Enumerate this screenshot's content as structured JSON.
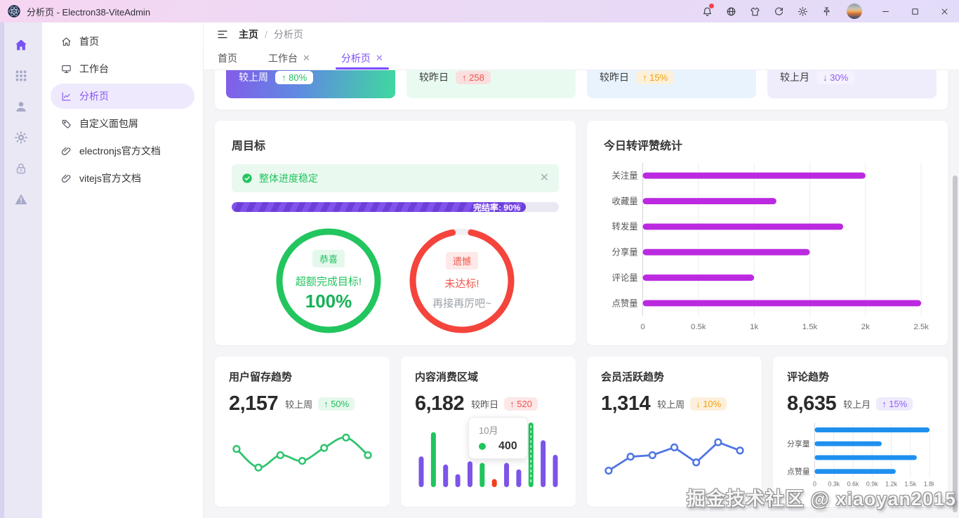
{
  "titlebar": {
    "app_title": "分析页 - Electron38-ViteAdmin",
    "action_icons": [
      "bell-icon",
      "language-icon",
      "theme-icon",
      "refresh-icon",
      "settings-icon",
      "pin-icon"
    ],
    "window_controls": [
      "minimize-icon",
      "maximize-icon",
      "close-icon"
    ],
    "notification_dot_color": "#f5434a"
  },
  "rail": {
    "items": [
      {
        "icon": "home-icon",
        "active": true
      },
      {
        "icon": "apps-grid-icon",
        "active": false
      },
      {
        "icon": "user-icon",
        "active": false
      },
      {
        "icon": "gear-icon",
        "active": false
      },
      {
        "icon": "lock-icon",
        "active": false
      },
      {
        "icon": "warning-icon",
        "active": false
      }
    ]
  },
  "sidebar": {
    "items": [
      {
        "icon": "home-outline-icon",
        "label": "首页",
        "active": false
      },
      {
        "icon": "monitor-icon",
        "label": "工作台",
        "active": false
      },
      {
        "icon": "chart-trend-icon",
        "label": "分析页",
        "active": true
      },
      {
        "icon": "tag-icon",
        "label": "自定义面包屑",
        "active": false
      },
      {
        "icon": "link-icon",
        "label": "electronjs官方文档",
        "active": false
      },
      {
        "icon": "link-icon",
        "label": "vitejs官方文档",
        "active": false
      }
    ]
  },
  "breadcrumb": {
    "items": [
      "主页",
      "分析页"
    ],
    "separator": "/"
  },
  "tabs": [
    {
      "label": "首页",
      "closable": false,
      "active": false
    },
    {
      "label": "工作台",
      "closable": true,
      "active": false
    },
    {
      "label": "分析页",
      "closable": true,
      "active": true
    }
  ],
  "overview_cards": [
    {
      "label": "较上周",
      "badge": "↑ 80%",
      "variant": "gradient"
    },
    {
      "label": "较昨日",
      "badge": "↑ 258",
      "variant": "green"
    },
    {
      "label": "较昨日",
      "badge": "↑ 15%",
      "variant": "blue"
    },
    {
      "label": "较上月",
      "badge": "↓ 30%",
      "variant": "purple"
    }
  ],
  "week_goal": {
    "title": "周目标",
    "alert_text": "整体进度稳定",
    "progress_value": 90,
    "progress_label": "完结率: 90%",
    "gauges": [
      {
        "badge": "恭喜",
        "line1": "超额完成目标!",
        "line2": "100%",
        "color": "#22c55e",
        "percent": 100
      },
      {
        "badge": "遗憾",
        "line1": "未达标!",
        "line2": "再接再厉吧~",
        "color": "#f4443c",
        "percent": 94
      }
    ]
  },
  "chart_data": [
    {
      "id": "today_stats",
      "type": "bar",
      "orientation": "horizontal",
      "title": "今日转评赞统计",
      "categories": [
        "关注量",
        "收藏量",
        "转发量",
        "分享量",
        "评论量",
        "点赞量"
      ],
      "values": [
        2000,
        1200,
        1800,
        1500,
        1000,
        2500
      ],
      "xticks": [
        "0",
        "0.5k",
        "1k",
        "1.5k",
        "2k",
        "2.5k"
      ],
      "xlim": [
        0,
        2500
      ],
      "bar_color": "#bb2ae0",
      "grid": true,
      "legend_position": "none"
    },
    {
      "id": "user_retention",
      "type": "line",
      "title": "用户留存趋势",
      "metric": "2,157",
      "compare_label": "较上周",
      "badge": "↑ 50%",
      "badge_style": "green",
      "values": [
        60,
        24,
        48,
        37,
        62,
        82,
        48
      ],
      "ymax": 100,
      "smooth": true,
      "color": "#2ec46d",
      "grid": false
    },
    {
      "id": "content_consumption",
      "type": "bar",
      "title": "内容消费区域",
      "metric": "6,182",
      "compare_label": "较昨日",
      "badge": "↑ 520",
      "badge_style": "red",
      "values": [
        190,
        340,
        140,
        80,
        160,
        150,
        50,
        150,
        110,
        400,
        290,
        200
      ],
      "ymax": 400,
      "colors": [
        "#7c54e8",
        "#21c45d",
        "#7c54e8",
        "#7c54e8",
        "#7c54e8",
        "#21c45d",
        "#f43f1e",
        "#7c54e8",
        "#7c54e8",
        "#21c45d",
        "#7c54e8",
        "#7c54e8"
      ],
      "hover_index": 9,
      "tooltip": {
        "label": "10月",
        "value": "400",
        "dot_color": "#21c45d"
      },
      "grid": false
    },
    {
      "id": "member_activity",
      "type": "line",
      "title": "会员活跃趋势",
      "metric": "1,314",
      "compare_label": "较上周",
      "badge": "↓ 10%",
      "badge_style": "orange",
      "values": [
        18,
        45,
        48,
        63,
        34,
        73,
        57
      ],
      "ymax": 100,
      "smooth": false,
      "color": "#4f74e3",
      "grid": false
    },
    {
      "id": "comment_trend",
      "type": "bar",
      "orientation": "horizontal",
      "title": "评论趋势",
      "metric": "8,635",
      "compare_label": "较上月",
      "badge": "↑ 15%",
      "badge_style": "purple",
      "categories": [
        "",
        "分享量",
        "",
        "点赞量"
      ],
      "values": [
        1800,
        1050,
        1600,
        1270
      ],
      "xticks": [
        "0",
        "0.3k",
        "0.6k",
        "0.9k",
        "1.2k",
        "1.5k",
        "1.8k"
      ],
      "xlim": [
        0,
        1800
      ],
      "bar_color": "#1e90ef",
      "grid": true
    }
  ],
  "watermark": "掘金技术社区 @ xiaoyan2015",
  "colors": {
    "accent": "#7c4dff",
    "sidebar_active": "#8457f0",
    "magenta_bar": "#bb2ae0",
    "green": "#22c55e",
    "red": "#f4443c"
  }
}
